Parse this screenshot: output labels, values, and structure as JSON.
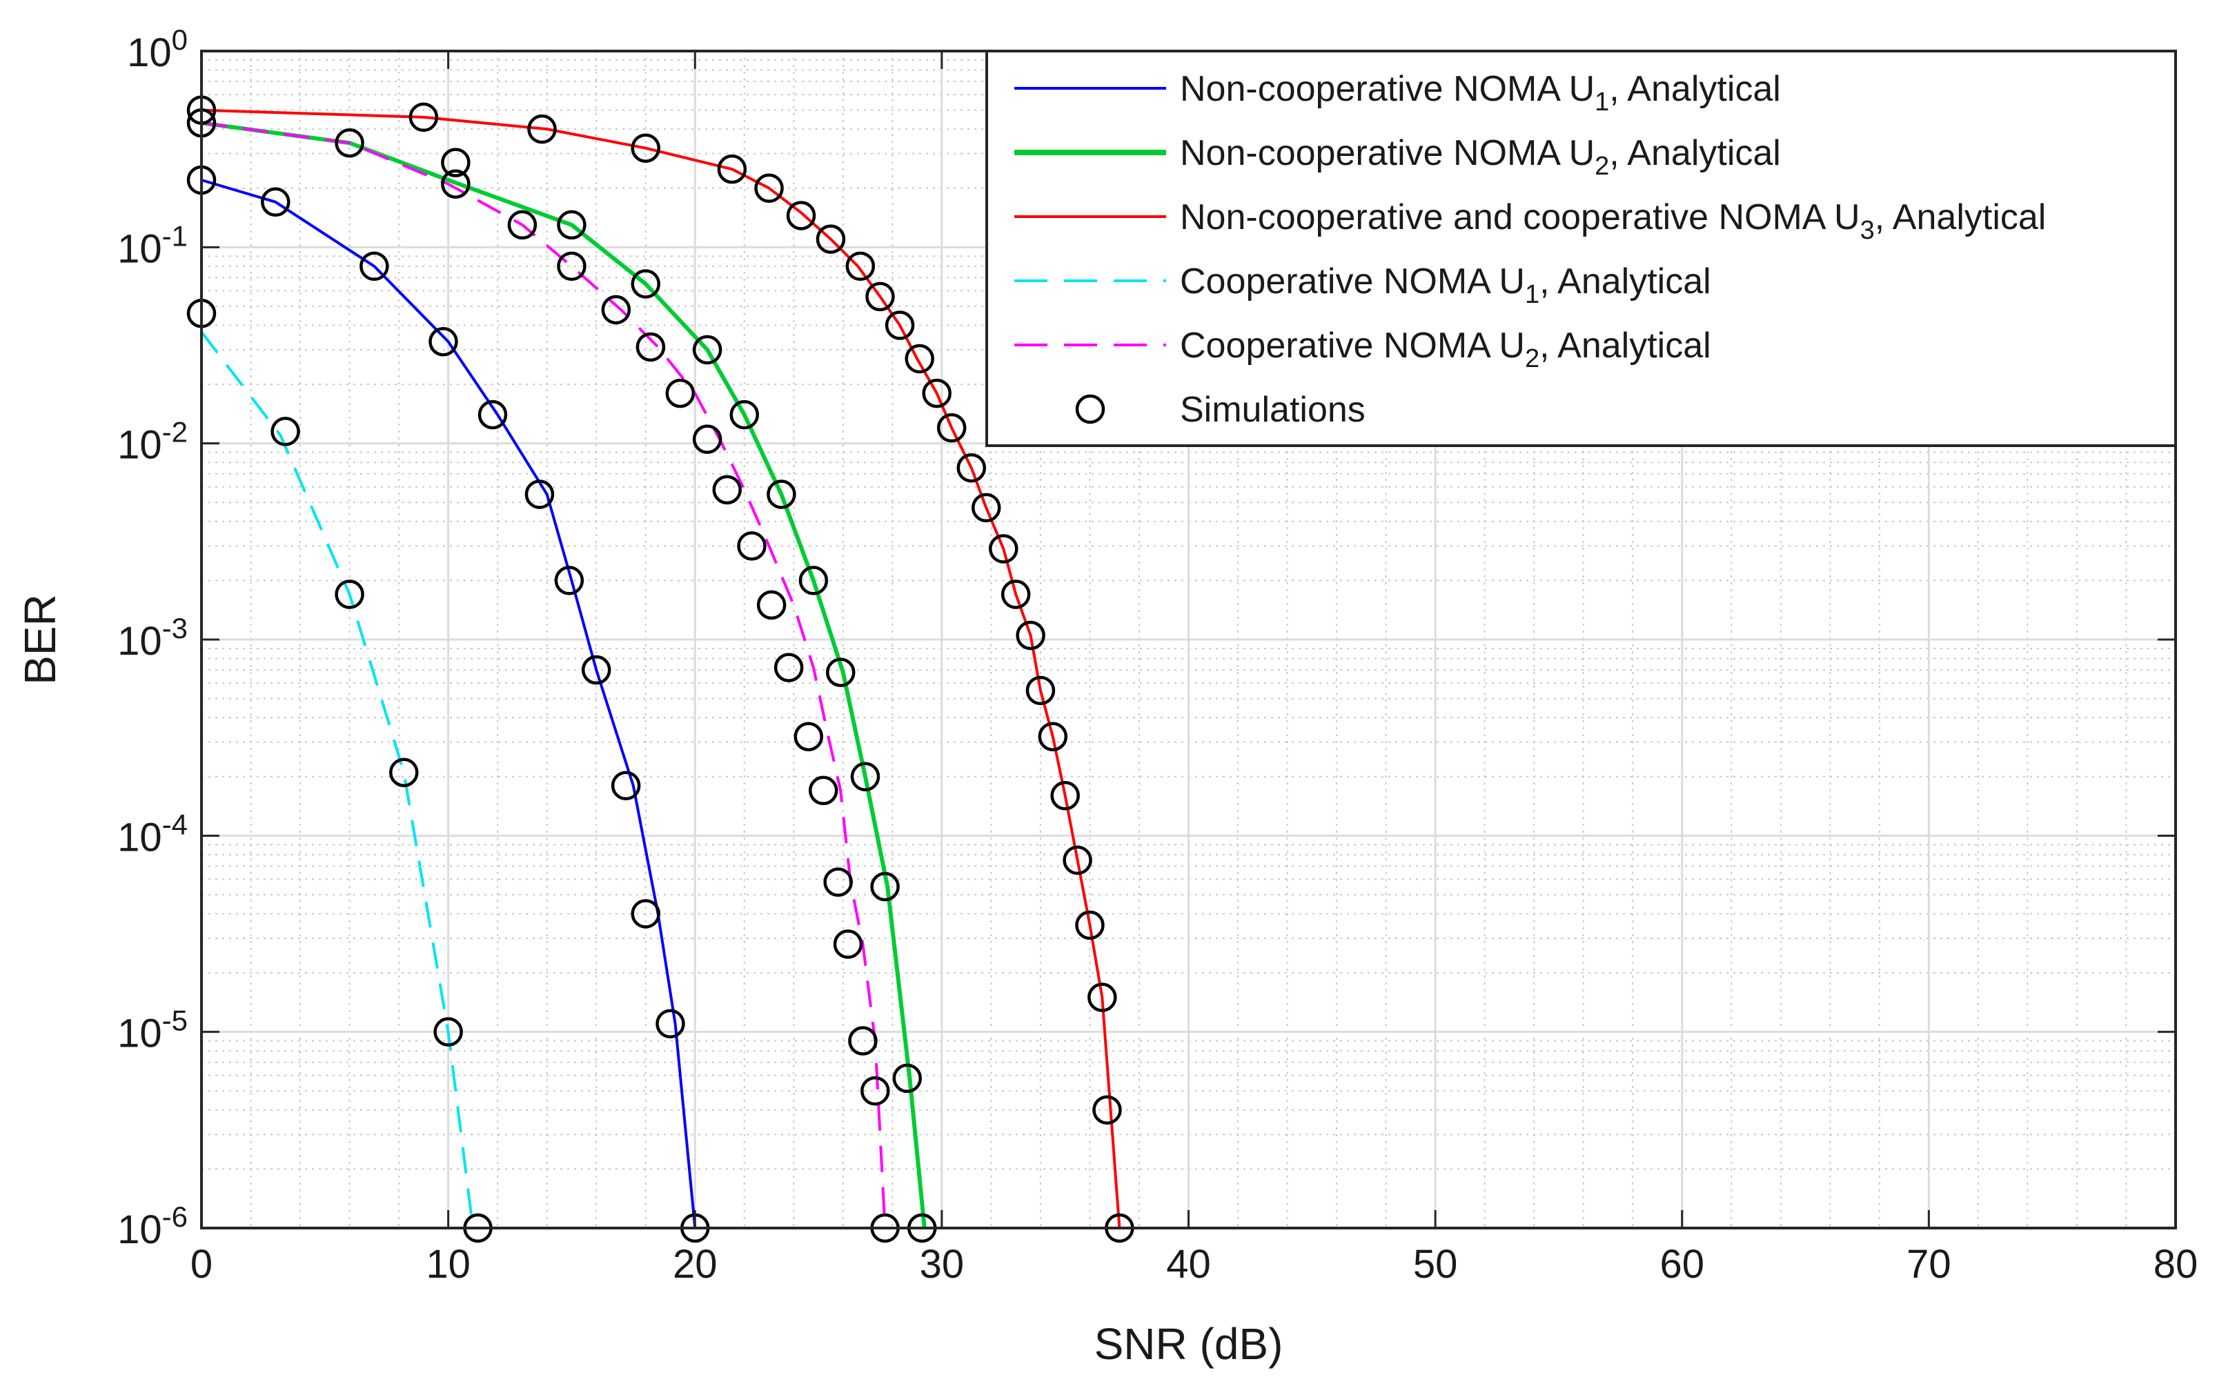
{
  "chart_data": {
    "type": "line",
    "title": "",
    "xlabel": "SNR (dB)",
    "ylabel": "BER",
    "xlim": [
      0,
      80
    ],
    "ylim": [
      1e-06,
      1
    ],
    "yscale": "log",
    "grid": true,
    "minor_grid": true,
    "legend_position": "top-right",
    "x_ticks": [
      0,
      10,
      20,
      30,
      40,
      50,
      60,
      70,
      80
    ],
    "x_tick_labels": [
      "0",
      "10",
      "20",
      "30",
      "40",
      "50",
      "60",
      "70",
      "80"
    ],
    "y_ticks": [
      {
        "value": 1,
        "base": "10",
        "exp": "0"
      },
      {
        "value": 0.1,
        "base": "10",
        "exp": "-1"
      },
      {
        "value": 0.01,
        "base": "10",
        "exp": "-2"
      },
      {
        "value": 0.001,
        "base": "10",
        "exp": "-3"
      },
      {
        "value": 0.0001,
        "base": "10",
        "exp": "-4"
      },
      {
        "value": 1e-05,
        "base": "10",
        "exp": "-5"
      },
      {
        "value": 1e-06,
        "base": "10",
        "exp": "-6"
      }
    ],
    "series": [
      {
        "id": "nc-u1",
        "legend_parts": [
          "Non-cooperative NOMA U",
          "1",
          ", Analytical"
        ],
        "color": "#0000ff",
        "style": "solid",
        "x": [
          0,
          3,
          7,
          10,
          12,
          14,
          15,
          16,
          17.5,
          18.5,
          19.2,
          20
        ],
        "y": [
          0.22,
          0.17,
          0.08,
          0.033,
          0.014,
          0.0055,
          0.002,
          0.0007,
          0.00018,
          4e-05,
          1.1e-05,
          1e-06
        ]
      },
      {
        "id": "nc-u2",
        "legend_parts": [
          "Non-cooperative NOMA U",
          "2",
          ", Analytical"
        ],
        "color": "#00cc33",
        "style": "solid",
        "x": [
          0,
          6,
          10,
          15,
          18,
          20.5,
          22,
          23.5,
          24.8,
          26,
          26.9,
          27.8,
          28.7,
          29.3
        ],
        "y": [
          0.43,
          0.34,
          0.22,
          0.13,
          0.065,
          0.03,
          0.014,
          0.0055,
          0.002,
          0.00068,
          0.0002,
          5.5e-05,
          5.8e-06,
          1e-06
        ]
      },
      {
        "id": "ncc-u3",
        "legend_parts": [
          "Non-cooperative and cooperative NOMA U",
          "3",
          ", Analytical"
        ],
        "color": "#ff0000",
        "style": "solid",
        "x": [
          0,
          9,
          14,
          18,
          21.5,
          23,
          24.3,
          25.5,
          26.6,
          27.5,
          28.3,
          29,
          29.8,
          30.4,
          31.2,
          31.8,
          32.5,
          33,
          33.6,
          34,
          34.5,
          35,
          35.5,
          36,
          36.5,
          37.2
        ],
        "y": [
          0.5,
          0.46,
          0.4,
          0.32,
          0.25,
          0.2,
          0.15,
          0.11,
          0.08,
          0.056,
          0.04,
          0.027,
          0.018,
          0.012,
          0.0075,
          0.0047,
          0.0029,
          0.0017,
          0.00105,
          0.00055,
          0.00032,
          0.00016,
          7.5e-05,
          3.5e-05,
          1.5e-05,
          1e-06
        ]
      },
      {
        "id": "c-u1",
        "legend_parts": [
          "Cooperative NOMA U",
          "1",
          ", Analytical"
        ],
        "color": "#00e5ee",
        "style": "dashed",
        "x": [
          0,
          3.2,
          6,
          8.2,
          10,
          11
        ],
        "y": [
          0.037,
          0.011,
          0.0017,
          0.00021,
          1e-05,
          1e-06
        ]
      },
      {
        "id": "c-u2",
        "legend_parts": [
          "Cooperative NOMA U",
          "2",
          ", Analytical"
        ],
        "color": "#ff00ff",
        "style": "dashed",
        "x": [
          0,
          6,
          10,
          13,
          15,
          17,
          18.5,
          20,
          21,
          22,
          23,
          24,
          24.8,
          25.4,
          25.9,
          26.3,
          26.8,
          27.3,
          27.7
        ],
        "y": [
          0.43,
          0.34,
          0.21,
          0.13,
          0.08,
          0.048,
          0.031,
          0.018,
          0.0105,
          0.0058,
          0.003,
          0.0015,
          0.00072,
          0.00032,
          0.00017,
          5.8e-05,
          2.8e-05,
          9e-06,
          1e-06
        ]
      }
    ],
    "simulations": {
      "legend_label": "Simulations",
      "marker": "circle",
      "color": "#000000",
      "points": [
        {
          "x": 0,
          "y": 0.22
        },
        {
          "x": 3,
          "y": 0.17
        },
        {
          "x": 7,
          "y": 0.08
        },
        {
          "x": 9.8,
          "y": 0.033
        },
        {
          "x": 11.8,
          "y": 0.014
        },
        {
          "x": 13.7,
          "y": 0.0055
        },
        {
          "x": 14.9,
          "y": 0.002
        },
        {
          "x": 16,
          "y": 0.0007
        },
        {
          "x": 17.2,
          "y": 0.00018
        },
        {
          "x": 18,
          "y": 4e-05
        },
        {
          "x": 19,
          "y": 1.1e-05
        },
        {
          "x": 20,
          "y": 1e-06
        },
        {
          "x": 0,
          "y": 0.43
        },
        {
          "x": 6,
          "y": 0.34
        },
        {
          "x": 10.3,
          "y": 0.27
        },
        {
          "x": 15,
          "y": 0.13
        },
        {
          "x": 18,
          "y": 0.065
        },
        {
          "x": 20.5,
          "y": 0.03
        },
        {
          "x": 22,
          "y": 0.014
        },
        {
          "x": 23.5,
          "y": 0.0055
        },
        {
          "x": 24.8,
          "y": 0.002
        },
        {
          "x": 25.9,
          "y": 0.00068
        },
        {
          "x": 26.9,
          "y": 0.0002
        },
        {
          "x": 27.7,
          "y": 5.5e-05
        },
        {
          "x": 28.6,
          "y": 5.8e-06
        },
        {
          "x": 29.2,
          "y": 1e-06
        },
        {
          "x": 0,
          "y": 0.5
        },
        {
          "x": 9,
          "y": 0.46
        },
        {
          "x": 13.8,
          "y": 0.4
        },
        {
          "x": 18,
          "y": 0.32
        },
        {
          "x": 21.5,
          "y": 0.25
        },
        {
          "x": 23,
          "y": 0.2
        },
        {
          "x": 24.3,
          "y": 0.145
        },
        {
          "x": 25.5,
          "y": 0.11
        },
        {
          "x": 26.7,
          "y": 0.08
        },
        {
          "x": 27.5,
          "y": 0.056
        },
        {
          "x": 28.3,
          "y": 0.04
        },
        {
          "x": 29.1,
          "y": 0.027
        },
        {
          "x": 29.8,
          "y": 0.018
        },
        {
          "x": 30.4,
          "y": 0.012
        },
        {
          "x": 31.2,
          "y": 0.0075
        },
        {
          "x": 31.8,
          "y": 0.0047
        },
        {
          "x": 32.5,
          "y": 0.0029
        },
        {
          "x": 33,
          "y": 0.0017
        },
        {
          "x": 33.6,
          "y": 0.00105
        },
        {
          "x": 34,
          "y": 0.00055
        },
        {
          "x": 34.5,
          "y": 0.00032
        },
        {
          "x": 35,
          "y": 0.00016
        },
        {
          "x": 35.5,
          "y": 7.5e-05
        },
        {
          "x": 36,
          "y": 3.5e-05
        },
        {
          "x": 36.5,
          "y": 1.5e-05
        },
        {
          "x": 36.7,
          "y": 4e-06
        },
        {
          "x": 37.2,
          "y": 1e-06
        },
        {
          "x": 0,
          "y": 0.046
        },
        {
          "x": 3.4,
          "y": 0.0115
        },
        {
          "x": 6,
          "y": 0.0017
        },
        {
          "x": 8.2,
          "y": 0.00021
        },
        {
          "x": 10,
          "y": 1e-05
        },
        {
          "x": 11.2,
          "y": 1e-06
        },
        {
          "x": 10.3,
          "y": 0.21
        },
        {
          "x": 13,
          "y": 0.13
        },
        {
          "x": 15,
          "y": 0.08
        },
        {
          "x": 16.8,
          "y": 0.048
        },
        {
          "x": 18.2,
          "y": 0.031
        },
        {
          "x": 19.4,
          "y": 0.018
        },
        {
          "x": 20.5,
          "y": 0.0105
        },
        {
          "x": 21.3,
          "y": 0.0058
        },
        {
          "x": 22.3,
          "y": 0.003
        },
        {
          "x": 23.1,
          "y": 0.0015
        },
        {
          "x": 23.8,
          "y": 0.00072
        },
        {
          "x": 24.6,
          "y": 0.00032
        },
        {
          "x": 25.2,
          "y": 0.00017
        },
        {
          "x": 25.8,
          "y": 5.8e-05
        },
        {
          "x": 26.2,
          "y": 2.8e-05
        },
        {
          "x": 26.8,
          "y": 9e-06
        },
        {
          "x": 27.3,
          "y": 5e-06
        },
        {
          "x": 27.7,
          "y": 1e-06
        }
      ]
    }
  }
}
